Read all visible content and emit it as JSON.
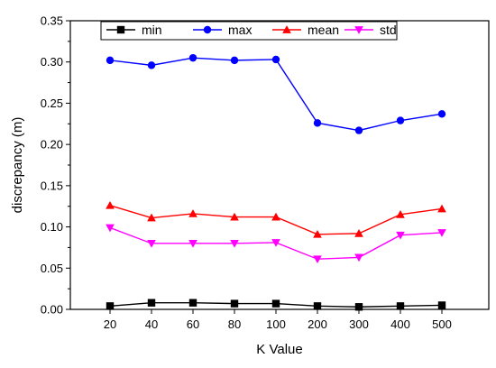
{
  "chart_data": {
    "type": "line",
    "title": "",
    "xlabel": "K Value",
    "ylabel": "discrepancy (m)",
    "categories": [
      "20",
      "40",
      "60",
      "80",
      "100",
      "200",
      "300",
      "400",
      "500"
    ],
    "ylim": [
      0,
      0.35
    ],
    "yticks": [
      "0.00",
      "0.05",
      "0.10",
      "0.15",
      "0.20",
      "0.25",
      "0.30",
      "0.35"
    ],
    "grid": false,
    "legend_position": "top-left",
    "series": [
      {
        "name": "min",
        "color": "#000000",
        "marker": "square",
        "values": [
          0.004,
          0.008,
          0.008,
          0.007,
          0.007,
          0.004,
          0.003,
          0.004,
          0.005
        ]
      },
      {
        "name": "max",
        "color": "#0000ff",
        "marker": "circle",
        "values": [
          0.302,
          0.296,
          0.305,
          0.302,
          0.303,
          0.226,
          0.217,
          0.229,
          0.237
        ]
      },
      {
        "name": "mean",
        "color": "#ff0000",
        "marker": "triangle-up",
        "values": [
          0.126,
          0.111,
          0.116,
          0.112,
          0.112,
          0.091,
          0.092,
          0.115,
          0.122
        ]
      },
      {
        "name": "std",
        "color": "#ff00ff",
        "marker": "triangle-down",
        "values": [
          0.099,
          0.08,
          0.08,
          0.08,
          0.081,
          0.061,
          0.063,
          0.09,
          0.093
        ]
      }
    ]
  }
}
